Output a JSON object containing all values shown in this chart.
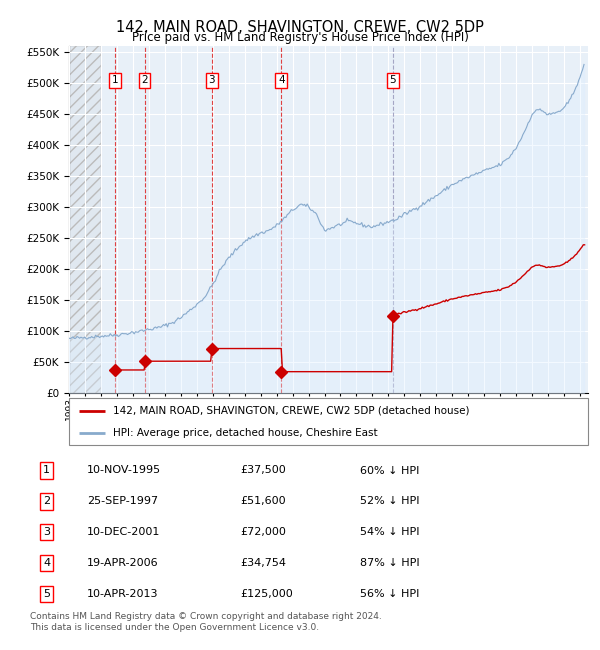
{
  "title": "142, MAIN ROAD, SHAVINGTON, CREWE, CW2 5DP",
  "subtitle": "Price paid vs. HM Land Registry's House Price Index (HPI)",
  "legend_property": "142, MAIN ROAD, SHAVINGTON, CREWE, CW2 5DP (detached house)",
  "legend_hpi": "HPI: Average price, detached house, Cheshire East",
  "footer": "Contains HM Land Registry data © Crown copyright and database right 2024.\nThis data is licensed under the Open Government Licence v3.0.",
  "sales": [
    {
      "num": 1,
      "date_dec": 1995.87,
      "price": 37500
    },
    {
      "num": 2,
      "date_dec": 1997.73,
      "price": 51600
    },
    {
      "num": 3,
      "date_dec": 2001.94,
      "price": 72000
    },
    {
      "num": 4,
      "date_dec": 2006.3,
      "price": 34754
    },
    {
      "num": 5,
      "date_dec": 2013.28,
      "price": 125000
    }
  ],
  "table_rows": [
    [
      "1",
      "10-NOV-1995",
      "£37,500",
      "60% ↓ HPI"
    ],
    [
      "2",
      "25-SEP-1997",
      "£51,600",
      "52% ↓ HPI"
    ],
    [
      "3",
      "10-DEC-2001",
      "£72,000",
      "54% ↓ HPI"
    ],
    [
      "4",
      "19-APR-2006",
      "£34,754",
      "87% ↓ HPI"
    ],
    [
      "5",
      "10-APR-2013",
      "£125,000",
      "56% ↓ HPI"
    ]
  ],
  "property_line_color": "#cc0000",
  "hpi_line_color": "#88aacc",
  "hpi_fill_color": "#ddeeff",
  "vline_color": "#dd2222",
  "vline5_color": "#9999bb",
  "ylim": [
    0,
    560000
  ],
  "xlim_start": 1993.0,
  "xlim_end": 2025.5,
  "background_color": "#e8f0f8",
  "grid_color": "#ffffff",
  "hatch_region_end": 1995.0
}
